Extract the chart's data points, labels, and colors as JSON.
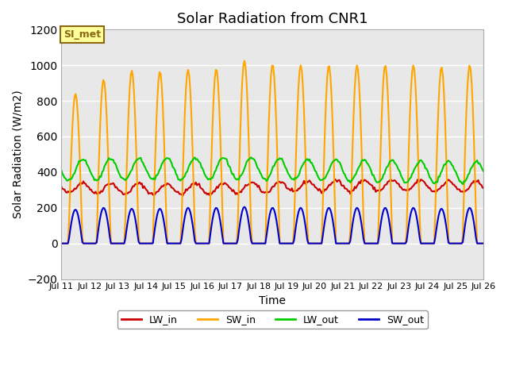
{
  "title": "Solar Radiation from CNR1",
  "xlabel": "Time",
  "ylabel": "Solar Radiation (W/m2)",
  "ylim": [
    -200,
    1200
  ],
  "xlim": [
    0,
    15
  ],
  "background_color": "#ffffff",
  "plot_bg_color": "#e8e8e8",
  "grid_color": "#ffffff",
  "annotation_text": "SI_met",
  "annotation_bg": "#ffff99",
  "annotation_border": "#8B6914",
  "series": {
    "LW_in": {
      "color": "#cc0000",
      "lw": 1.5
    },
    "SW_in": {
      "color": "#ffa500",
      "lw": 1.5
    },
    "LW_out": {
      "color": "#00cc00",
      "lw": 1.5
    },
    "SW_out": {
      "color": "#0000cc",
      "lw": 1.5
    }
  },
  "x_tick_labels": [
    "Jul 11",
    "Jul 12",
    "Jul 13",
    "Jul 14",
    "Jul 15",
    "Jul 16",
    "Jul 17",
    "Jul 18",
    "Jul 19",
    "Jul 20",
    "Jul 21",
    "Jul 22",
    "Jul 23",
    "Jul 24",
    "Jul 25",
    "Jul 26"
  ],
  "num_days": 16
}
